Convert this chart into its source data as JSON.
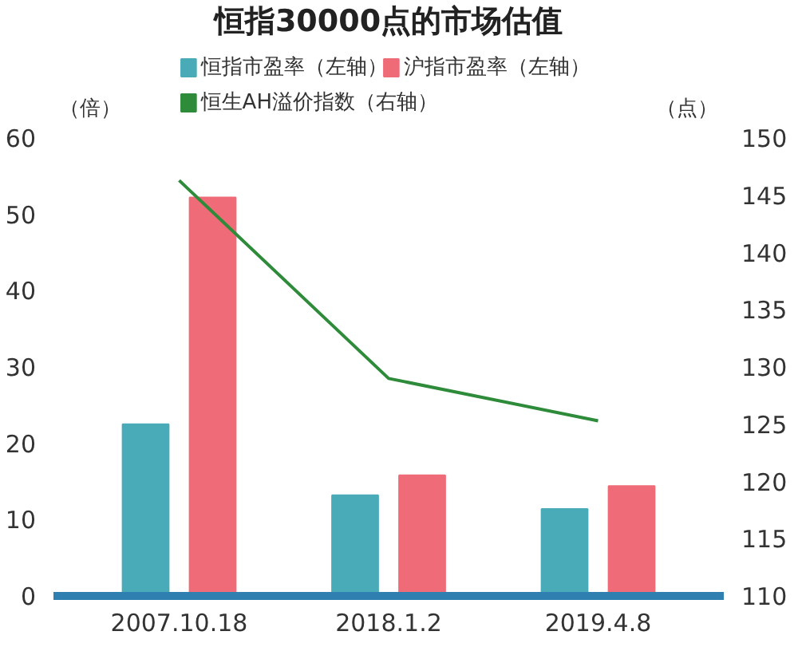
{
  "chart_data": {
    "type": "bar",
    "title": "恒指30000点的市场估值",
    "categories": [
      "2007.10.18",
      "2018.1.2",
      "2019.4.8"
    ],
    "series": [
      {
        "name": "恒指市盈率（左轴）",
        "color": "#4aabb8",
        "values": [
          22.5,
          13.2,
          11.4
        ]
      },
      {
        "name": "沪指市盈率（左轴）",
        "color": "#ef6b78",
        "values": [
          52.2,
          15.8,
          14.4
        ]
      },
      {
        "name": "恒生AH溢价指数（右轴）",
        "type": "line",
        "axis": "y2",
        "color": "#2e8b3a",
        "values": [
          146.3,
          129.0,
          125.3
        ]
      }
    ],
    "ylabel": "（倍）",
    "y2label": "（点）",
    "ylim": [
      0,
      60
    ],
    "yticks": [
      0,
      10,
      20,
      30,
      40,
      50,
      60
    ],
    "y2lim": [
      110,
      150
    ],
    "y2ticks": [
      110,
      115,
      120,
      125,
      130,
      135,
      140,
      145,
      150
    ],
    "grid": false,
    "legend": "top"
  }
}
